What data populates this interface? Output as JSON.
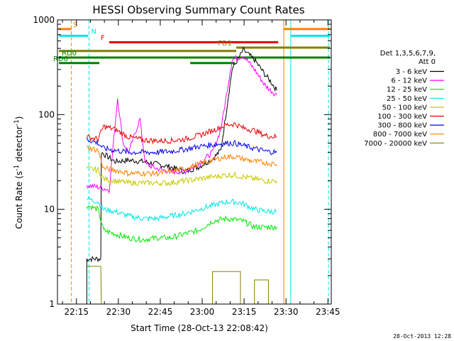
{
  "chart_data": {
    "type": "line",
    "title": "HESSI Observing Summary Count Rates",
    "xlabel": "Start Time (28-Oct-13 22:08:42)",
    "ylabel_main": "Count Rate (s",
    "ylabel_sup": "-1",
    "ylabel_mid": " detector",
    "ylabel_end": ")",
    "y_scale": "log",
    "xlim": [
      -0.5,
      97.5
    ],
    "ylim": [
      1,
      1000
    ],
    "grid": false,
    "x_ticks": [
      {
        "t": 6.3,
        "label": "22:15"
      },
      {
        "t": 21.3,
        "label": "22:30"
      },
      {
        "t": 36.3,
        "label": "22:45"
      },
      {
        "t": 51.3,
        "label": "23:00"
      },
      {
        "t": 66.3,
        "label": "23:15"
      },
      {
        "t": 81.3,
        "label": "23:30"
      },
      {
        "t": 96.3,
        "label": "23:45"
      }
    ],
    "y_ticks": [
      {
        "v": 1,
        "label": "1"
      },
      {
        "v": 10,
        "label": "10"
      },
      {
        "v": 100,
        "label": "100"
      },
      {
        "v": 1000,
        "label": "1000"
      }
    ],
    "legend_title": [
      "Det 1,3,5,6,7,9,",
      "Att 0"
    ],
    "legend_position": "right",
    "series": [
      {
        "name": "3 - 6 keV",
        "color": "#000000",
        "points": [
          [
            10,
            1
          ],
          [
            10,
            3
          ],
          [
            15,
            3
          ],
          [
            15.2,
            40
          ],
          [
            20,
            32
          ],
          [
            25,
            33
          ],
          [
            30,
            32
          ],
          [
            35,
            30
          ],
          [
            40,
            28
          ],
          [
            45,
            25
          ],
          [
            50,
            28
          ],
          [
            55,
            34
          ],
          [
            58,
            42
          ],
          [
            62,
            300
          ],
          [
            66,
            480
          ],
          [
            70,
            380
          ],
          [
            74,
            260
          ],
          [
            76,
            220
          ],
          [
            78,
            180
          ]
        ]
      },
      {
        "name": "6 - 12 keV",
        "color": "#ff00ff",
        "points": [
          [
            10,
            18
          ],
          [
            15,
            17
          ],
          [
            18,
            16
          ],
          [
            21,
            150
          ],
          [
            23,
            50
          ],
          [
            25,
            40
          ],
          [
            29,
            90
          ],
          [
            31,
            30
          ],
          [
            35,
            27
          ],
          [
            40,
            25
          ],
          [
            45,
            25
          ],
          [
            50,
            30
          ],
          [
            55,
            40
          ],
          [
            58,
            70
          ],
          [
            62,
            380
          ],
          [
            66,
            420
          ],
          [
            70,
            300
          ],
          [
            74,
            200
          ],
          [
            78,
            160
          ]
        ]
      },
      {
        "name": "12 - 25 keV",
        "color": "#00e600",
        "points": [
          [
            10,
            11
          ],
          [
            14,
            10
          ],
          [
            16,
            6
          ],
          [
            20,
            5.5
          ],
          [
            25,
            5
          ],
          [
            30,
            4.8
          ],
          [
            35,
            5
          ],
          [
            40,
            5
          ],
          [
            45,
            5.5
          ],
          [
            50,
            6
          ],
          [
            55,
            7.5
          ],
          [
            60,
            8
          ],
          [
            63,
            7.8
          ],
          [
            66,
            7.5
          ],
          [
            70,
            6.5
          ],
          [
            74,
            6.5
          ],
          [
            78,
            6.5
          ]
        ]
      },
      {
        "name": "25 - 50 keV",
        "color": "#00e6e6",
        "points": [
          [
            10,
            13
          ],
          [
            14,
            12
          ],
          [
            16,
            10
          ],
          [
            20,
            9.5
          ],
          [
            25,
            8.5
          ],
          [
            30,
            8
          ],
          [
            35,
            8
          ],
          [
            40,
            8.5
          ],
          [
            45,
            9
          ],
          [
            50,
            10
          ],
          [
            55,
            11
          ],
          [
            60,
            12
          ],
          [
            63,
            12
          ],
          [
            66,
            11.5
          ],
          [
            70,
            10
          ],
          [
            74,
            9.5
          ],
          [
            78,
            9.5
          ]
        ]
      },
      {
        "name": "50 - 100 keV",
        "color": "#c8c800",
        "points": [
          [
            10,
            27
          ],
          [
            14,
            26
          ],
          [
            16,
            21
          ],
          [
            20,
            20
          ],
          [
            25,
            19
          ],
          [
            30,
            19
          ],
          [
            35,
            19
          ],
          [
            40,
            19
          ],
          [
            45,
            20
          ],
          [
            50,
            21
          ],
          [
            55,
            22
          ],
          [
            60,
            23
          ],
          [
            63,
            23
          ],
          [
            66,
            22
          ],
          [
            70,
            21
          ],
          [
            74,
            20
          ],
          [
            78,
            20
          ]
        ]
      },
      {
        "name": "100 - 300 keV",
        "color": "#e60000",
        "points": [
          [
            10,
            58
          ],
          [
            14,
            55
          ],
          [
            16,
            75
          ],
          [
            20,
            70
          ],
          [
            25,
            58
          ],
          [
            30,
            54
          ],
          [
            35,
            53
          ],
          [
            40,
            53
          ],
          [
            45,
            55
          ],
          [
            50,
            60
          ],
          [
            55,
            68
          ],
          [
            60,
            78
          ],
          [
            63,
            80
          ],
          [
            66,
            72
          ],
          [
            70,
            68
          ],
          [
            74,
            60
          ],
          [
            78,
            58
          ]
        ]
      },
      {
        "name": "300 - 800 keV",
        "color": "#0000e6",
        "points": [
          [
            10,
            55
          ],
          [
            14,
            50
          ],
          [
            16,
            44
          ],
          [
            20,
            42
          ],
          [
            25,
            40
          ],
          [
            30,
            40
          ],
          [
            35,
            40
          ],
          [
            40,
            41
          ],
          [
            45,
            43
          ],
          [
            50,
            46
          ],
          [
            55,
            48
          ],
          [
            60,
            50
          ],
          [
            63,
            50
          ],
          [
            66,
            47
          ],
          [
            70,
            44
          ],
          [
            74,
            41
          ],
          [
            78,
            40
          ]
        ]
      },
      {
        "name": "800 - 7000 keV",
        "color": "#ff8000",
        "points": [
          [
            10,
            45
          ],
          [
            14,
            42
          ],
          [
            16,
            27
          ],
          [
            20,
            26
          ],
          [
            25,
            24
          ],
          [
            30,
            24
          ],
          [
            35,
            24
          ],
          [
            40,
            25
          ],
          [
            45,
            27
          ],
          [
            50,
            30
          ],
          [
            55,
            33
          ],
          [
            60,
            36
          ],
          [
            63,
            36
          ],
          [
            66,
            34
          ],
          [
            70,
            32
          ],
          [
            74,
            31
          ],
          [
            78,
            30
          ]
        ]
      },
      {
        "name": "7000 - 20000 keV",
        "color": "#808000",
        "points": [
          [
            10,
            2.5
          ],
          [
            15,
            2.5
          ],
          [
            15.2,
            1
          ],
          [
            55,
            1
          ],
          [
            55,
            2.2
          ],
          [
            65,
            2.2
          ],
          [
            65,
            1
          ],
          [
            70,
            1
          ],
          [
            70,
            1.8
          ],
          [
            75,
            1.8
          ],
          [
            75,
            1
          ]
        ]
      }
    ],
    "flags": [
      {
        "label": "S",
        "color": "#ff8000",
        "value": 800,
        "segments": [
          [
            0,
            4.5
          ],
          [
            80.5,
            97
          ]
        ]
      },
      {
        "label": "N",
        "color": "#00e6e6",
        "value": 680,
        "segments": [
          [
            0,
            10.5
          ],
          [
            83,
            97
          ]
        ]
      },
      {
        "label": "F",
        "color": "#e60000",
        "value": 580,
        "segments": [
          [
            18,
            78.5
          ]
        ]
      },
      {
        "label": "FD1",
        "color": "#808000",
        "value": 510,
        "segments": [
          [
            63.5,
            97
          ]
        ]
      },
      {
        "label": "FD1",
        "color": "#808000",
        "value": 470,
        "segments": [
          [
            0,
            63.5
          ]
        ]
      },
      {
        "label": "RD0",
        "color": "#008000",
        "value": 400,
        "segments": [
          [
            0,
            97
          ]
        ]
      },
      {
        "label": "RD6",
        "color": "#008000",
        "value": 350,
        "segments": [
          [
            0,
            14.5
          ],
          [
            47,
            63
          ]
        ]
      }
    ],
    "vlines": [
      {
        "t": 4.5,
        "color": "#ff8000",
        "dash": true
      },
      {
        "t": 10.8,
        "color": "#00e6e6",
        "dash": true
      },
      {
        "t": 80.5,
        "color": "#ff8000",
        "dash": false
      },
      {
        "t": 83,
        "color": "#00e6e6",
        "dash": false
      },
      {
        "t": 96.5,
        "color": "#00e6e6",
        "dash": true
      }
    ]
  },
  "footer_stamp": "28-Oct-2013 12:28"
}
